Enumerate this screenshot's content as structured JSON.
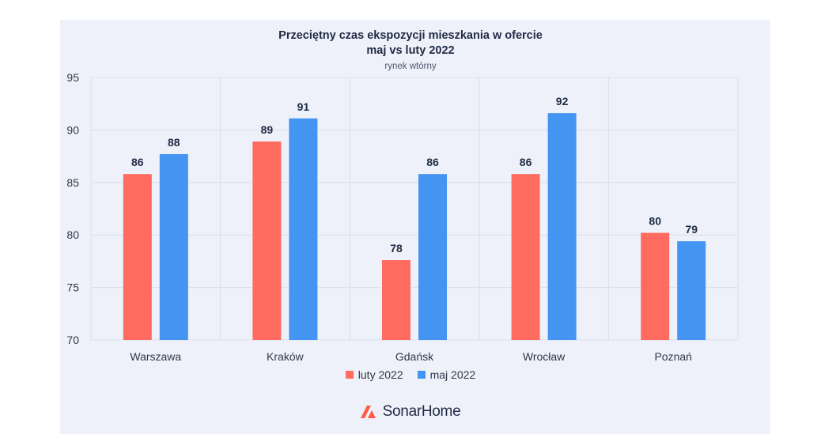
{
  "colors": {
    "series1": "#ff6b5e",
    "series2": "#4494f2",
    "grid": "#d9deea",
    "text": "#1f2a44",
    "logo": "#ff5b48"
  },
  "chart_data": {
    "type": "bar",
    "title": "Przeciętny czas ekspozycji mieszkania w ofercie",
    "subtitle": "maj vs luty 2022",
    "note": "rynek wtórny",
    "categories": [
      "Warszawa",
      "Kraków",
      "Gdańsk",
      "Wrocław",
      "Poznań"
    ],
    "series": [
      {
        "name": "luty 2022",
        "values": [
          86,
          89,
          78,
          86,
          80
        ],
        "labels": [
          "86",
          "89",
          "78",
          "86",
          "80"
        ],
        "actual": [
          85.8,
          88.9,
          77.6,
          85.8,
          80.2
        ]
      },
      {
        "name": "maj 2022",
        "values": [
          88,
          91,
          86,
          92,
          79
        ],
        "labels": [
          "88",
          "91",
          "86",
          "92",
          "79"
        ],
        "actual": [
          87.7,
          91.1,
          85.8,
          91.6,
          79.4
        ]
      }
    ],
    "ylim": [
      70,
      95
    ],
    "yticks": [
      70,
      75,
      80,
      85,
      90,
      95
    ],
    "grid": true,
    "legend": "bottom"
  },
  "brand": {
    "name": "SonarHome",
    "icon": "sonarhome-logo-icon"
  }
}
